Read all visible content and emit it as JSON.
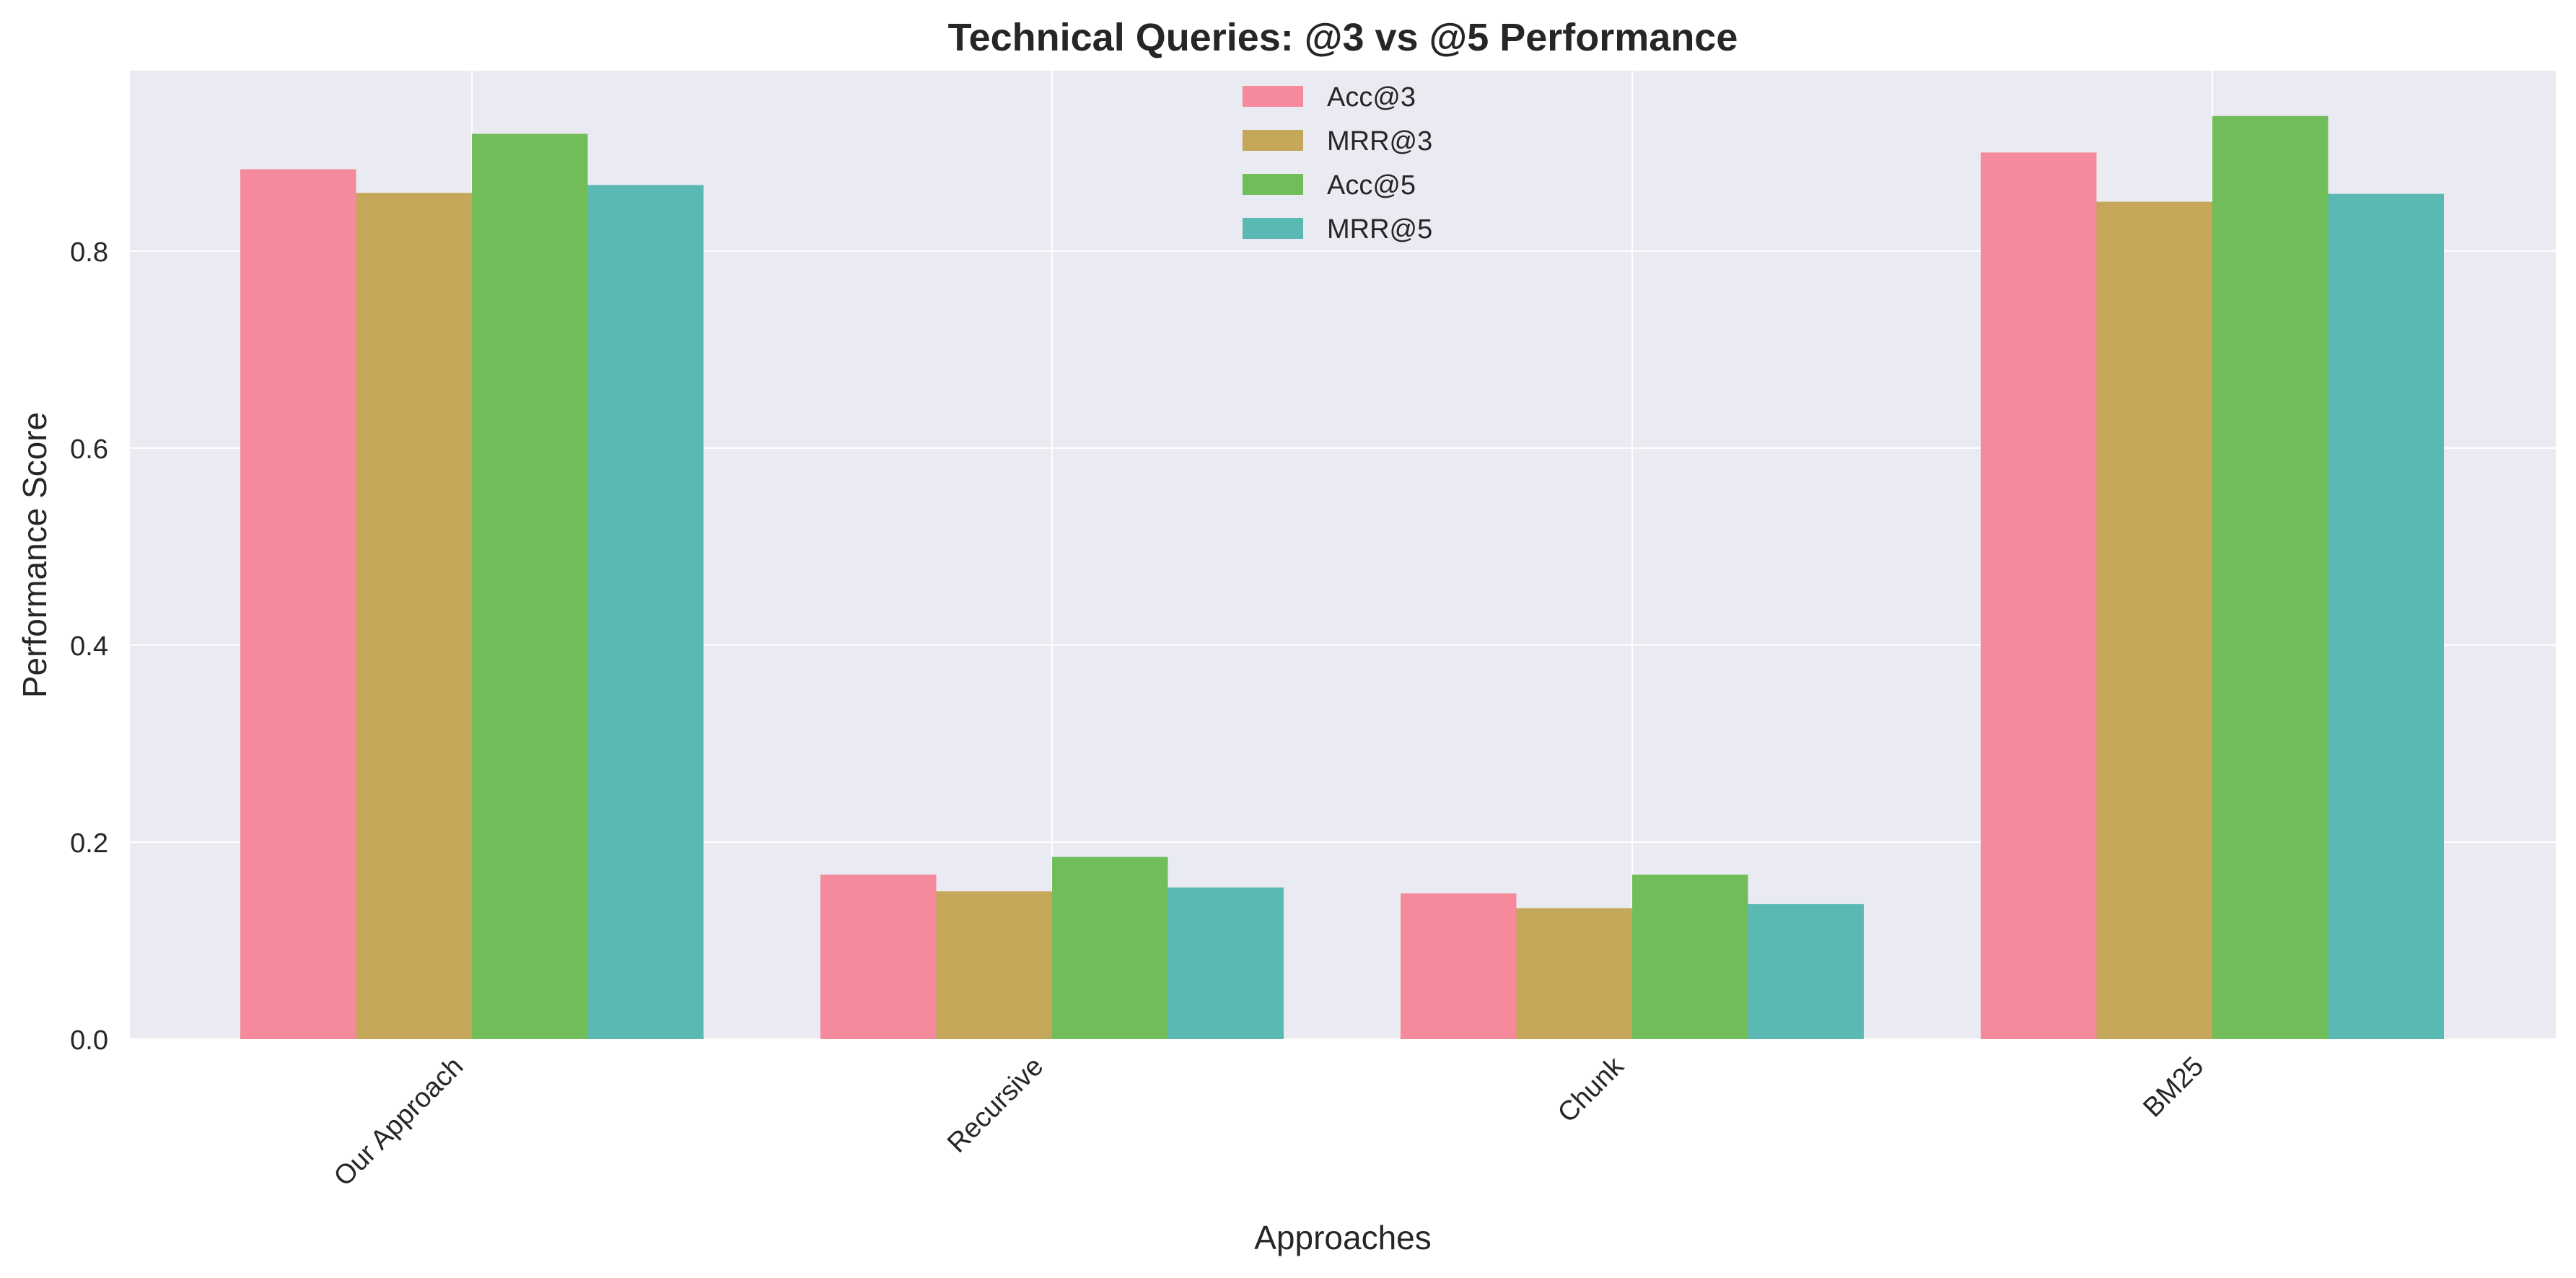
{
  "chart_data": {
    "type": "bar",
    "title": "Technical Queries: @3 vs @5 Performance",
    "xlabel": "Approaches",
    "ylabel": "Performance Score",
    "categories": [
      "Our Approach",
      "Recursive",
      "Chunk",
      "BM25"
    ],
    "series": [
      {
        "name": "Acc@3",
        "color": "#f48a9c",
        "values": [
          0.883,
          0.167,
          0.148,
          0.9
        ]
      },
      {
        "name": "MRR@3",
        "color": "#c4a758",
        "values": [
          0.859,
          0.15,
          0.133,
          0.85
        ]
      },
      {
        "name": "Acc@5",
        "color": "#71bd5a",
        "values": [
          0.919,
          0.185,
          0.167,
          0.937
        ]
      },
      {
        "name": "MRR@5",
        "color": "#5bb9b4",
        "values": [
          0.867,
          0.154,
          0.137,
          0.858
        ]
      }
    ],
    "ylim": [
      0,
      0.983
    ],
    "yticks": [
      "0.0",
      "0.2",
      "0.4",
      "0.6",
      "0.8"
    ],
    "grid": true,
    "legend_position": "top-center",
    "plot_background": "#eaeaf2"
  }
}
